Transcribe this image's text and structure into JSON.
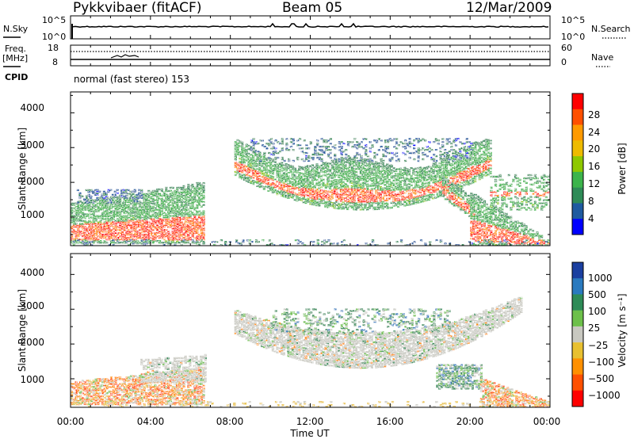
{
  "header": {
    "station": "Pykkvibaer (fitACF)",
    "beam": "Beam 05",
    "date": "12/Mar/2009"
  },
  "noise_panel": {
    "left_label": "N.Sky",
    "right_label": "N.Search",
    "left_ticks": [
      "10^5",
      "10^0"
    ],
    "right_ticks": [
      "10^5",
      "10^0"
    ]
  },
  "freq_panel": {
    "left_label_1": "Freq.",
    "left_label_2": "[MHz]",
    "right_label": "Nave",
    "left_ticks": [
      "18",
      "8"
    ],
    "right_ticks": [
      "60",
      "0"
    ]
  },
  "cpid": {
    "label": "CPID",
    "text": "normal (fast stereo) 153"
  },
  "time_axis": {
    "ticks": [
      "00:00",
      "04:00",
      "08:00",
      "12:00",
      "16:00",
      "20:00",
      "00:00"
    ],
    "label": "Time UT"
  },
  "power_panel": {
    "ylabel": "Slant Range [km]",
    "yticks": [
      "4000",
      "3000",
      "2000",
      "1000"
    ],
    "cbar_label": "Power [dB]",
    "cbar_ticks": [
      "28",
      "24",
      "20",
      "16",
      "12",
      "8",
      "4"
    ],
    "colors": [
      "#ff0000",
      "#ff5000",
      "#ff9a00",
      "#eebb00",
      "#8ec800",
      "#3cb44b",
      "#2e8b57",
      "#1e5aa0",
      "#0000ff"
    ]
  },
  "velocity_panel": {
    "ylabel": "Slant Range [km]",
    "yticks": [
      "4000",
      "3000",
      "2000",
      "1000"
    ],
    "cbar_label": "Velocity [m s⁻¹]",
    "cbar_ticks": [
      "1000",
      "500",
      "100",
      "25",
      "−25",
      "−100",
      "−500",
      "−1000"
    ],
    "colors": [
      "#1a3fa0",
      "#2a7abf",
      "#2e8b57",
      "#6dc04a",
      "#c8c8c0",
      "#e8c030",
      "#ff9000",
      "#ff5000",
      "#ff0000"
    ]
  },
  "chart_data": {
    "type": "heatmap",
    "x_range_hours": [
      0,
      24
    ],
    "y_range_km": [
      180,
      4600
    ],
    "power_range_db": [
      0,
      32
    ],
    "velocity_range_ms": [
      -1200,
      1200
    ]
  }
}
